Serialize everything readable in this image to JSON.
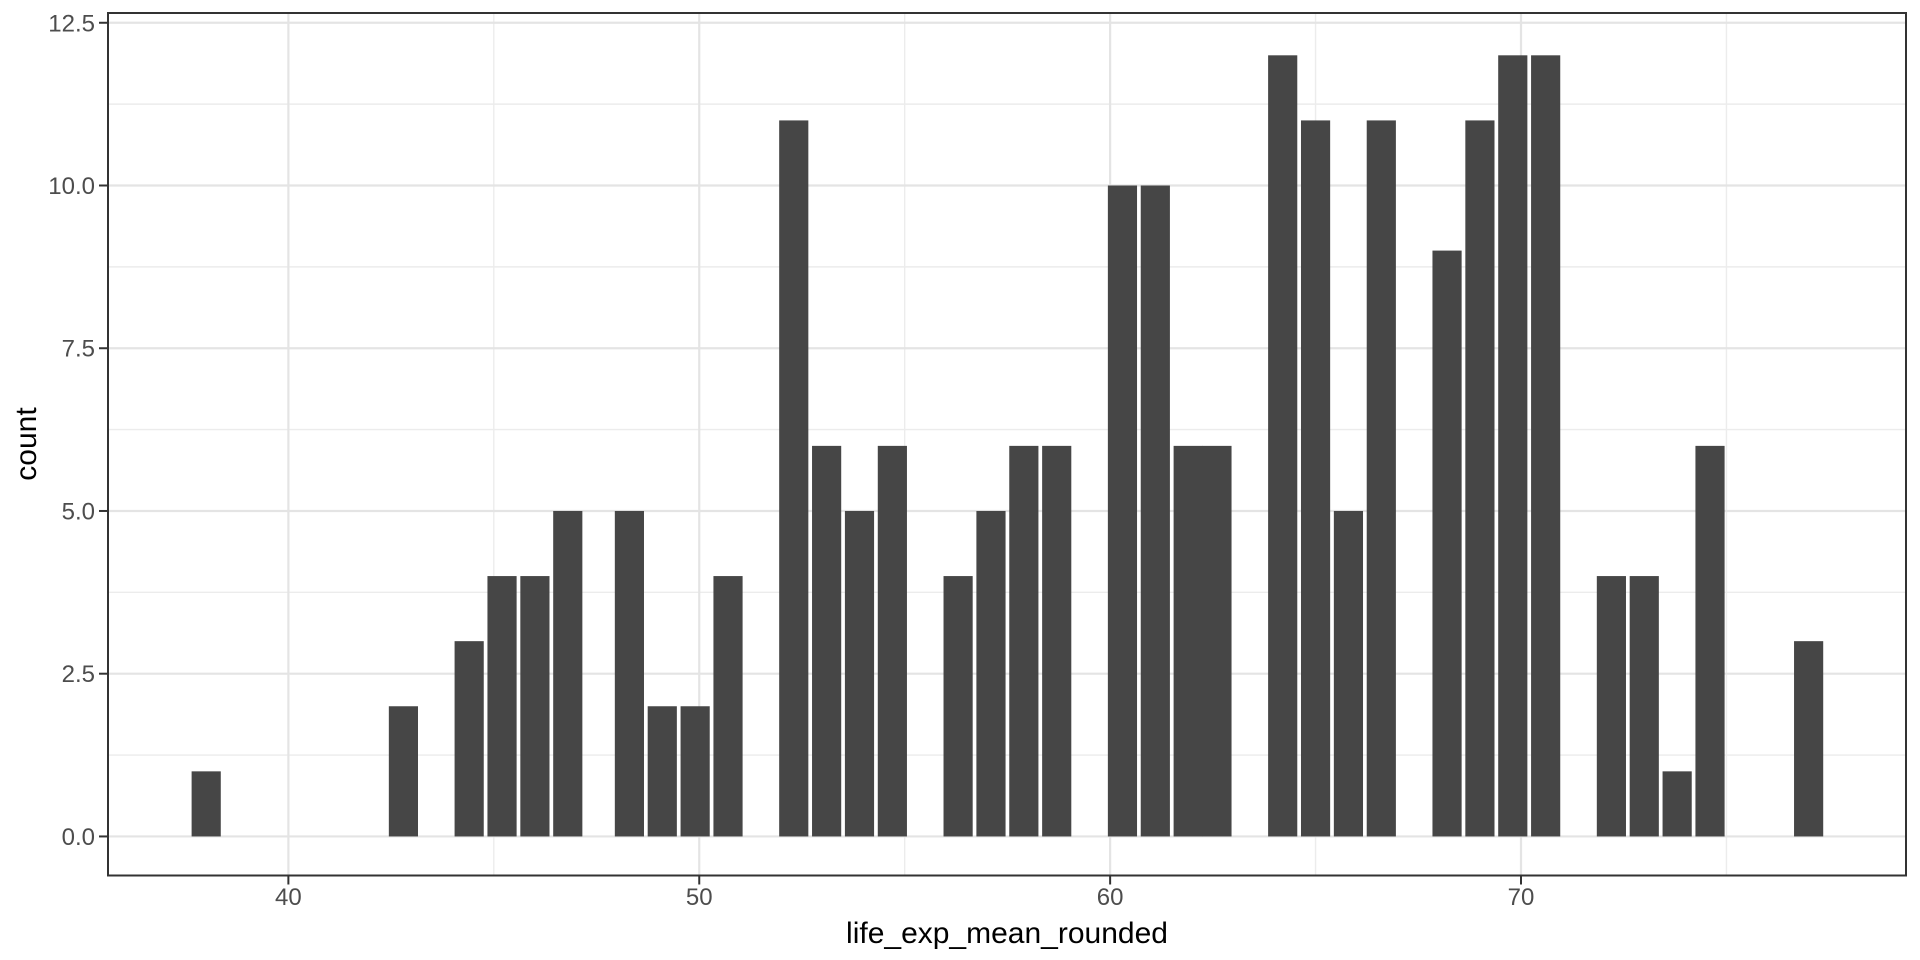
{
  "figure": {
    "background": "#ffffff",
    "panel_background": "#ffffff",
    "panel_border_color": "#333333",
    "grid_major_color": "#e4e4e4",
    "grid_minor_color": "#ececec",
    "tick_mark_color": "#333333",
    "tick_label_color": "#4d4d4d",
    "axis_title_color": "#000000"
  },
  "chart_data": {
    "type": "bar",
    "title": "",
    "xlabel": "life_exp_mean_rounded",
    "ylabel": "count",
    "x": [
      38.0,
      42.8,
      44.4,
      45.2,
      46.0,
      46.8,
      48.3,
      49.1,
      49.9,
      50.7,
      52.3,
      53.1,
      53.9,
      54.7,
      56.3,
      57.1,
      57.9,
      58.7,
      60.3,
      61.1,
      61.9,
      62.6,
      64.2,
      65.0,
      65.8,
      66.6,
      68.2,
      69.0,
      69.8,
      70.6,
      72.2,
      73.0,
      73.8,
      74.6,
      77.0
    ],
    "values": [
      1,
      2,
      3,
      4,
      4,
      5,
      5,
      2,
      2,
      4,
      11,
      6,
      5,
      6,
      4,
      5,
      6,
      6,
      10,
      10,
      6,
      6,
      12,
      11,
      5,
      11,
      9,
      11,
      12,
      12,
      4,
      4,
      1,
      6,
      3
    ],
    "bar_fill": "#464646",
    "bar_width_units": 0.71,
    "xlim": [
      35.61,
      79.37
    ],
    "ylim": [
      -0.6,
      12.65
    ],
    "x_ticks": {
      "values": [
        40,
        50,
        60,
        70
      ],
      "labels": [
        "40",
        "50",
        "60",
        "70"
      ]
    },
    "x_minor_gridlines": [
      45,
      55,
      65,
      75
    ],
    "y_ticks": {
      "values": [
        0,
        2.5,
        5,
        7.5,
        10,
        12.5
      ],
      "labels": [
        "0.0",
        "2.5",
        "5.0",
        "7.5",
        "10.0",
        "12.5"
      ]
    },
    "y_minor_gridlines": [
      1.25,
      3.75,
      6.25,
      8.75,
      11.25
    ],
    "grid": "major+minor",
    "legend": "none"
  }
}
